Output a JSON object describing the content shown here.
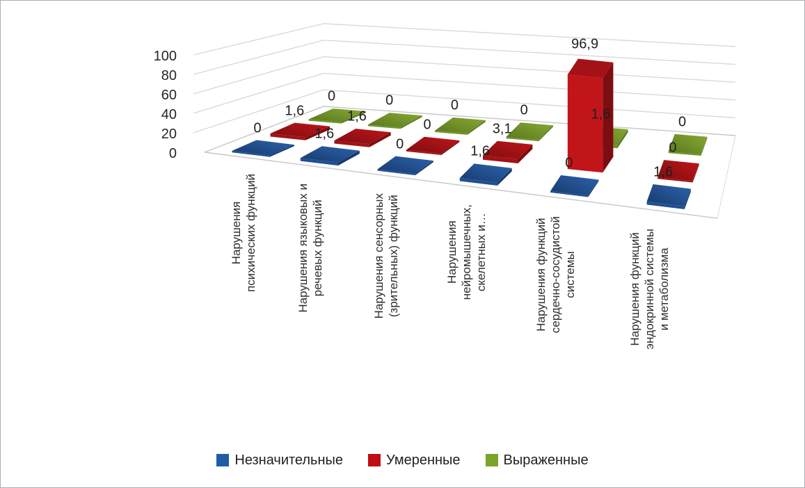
{
  "chart_data": {
    "type": "bar",
    "style": "3d-clustered-column",
    "title": "",
    "categories": [
      "Нарушения психических функций",
      "Нарушения языковых и речевых функций",
      "Нарушения сенсорных (зрительных) функций",
      "Нарушения нейромышечных, скелетных и…",
      "Нарушения функций сердечно-сосудистой системы",
      "Нарушения функций эндокринной системы и метаболизма"
    ],
    "category_label_lines": [
      [
        "Нарушения",
        "психических функций"
      ],
      [
        "Нарушения языковых и",
        "речевых функций"
      ],
      [
        "Нарушения сенсорных",
        "(зрительных) функций"
      ],
      [
        "Нарушения",
        "нейромышечных,",
        "скелетных и…"
      ],
      [
        "Нарушения функций",
        "сердечно-сосудистой",
        "системы"
      ],
      [
        "Нарушения функций",
        "эндокринной системы",
        "и метаболизма"
      ]
    ],
    "series": [
      {
        "name": "Незначительные",
        "color": "#1e5ca8",
        "values": [
          0,
          1.6,
          0,
          1.6,
          0,
          1.6
        ],
        "labels": [
          "0",
          "1,6",
          "0",
          "1,6",
          "0",
          "1,6"
        ]
      },
      {
        "name": "Умеренные",
        "color": "#c00d10",
        "values": [
          1.6,
          1.6,
          0,
          3.1,
          96.9,
          0
        ],
        "labels": [
          "1,6",
          "1,6",
          "0",
          "3,1",
          "96,9",
          "0"
        ]
      },
      {
        "name": "Выраженные",
        "color": "#7ba428",
        "values": [
          0,
          0,
          0,
          0,
          1.6,
          0
        ],
        "labels": [
          "0",
          "0",
          "0",
          "0",
          "1,6",
          "0"
        ]
      }
    ],
    "y_axis": {
      "min": 0,
      "max": 100,
      "step": 20,
      "tick_labels": [
        "0",
        "20",
        "40",
        "60",
        "80",
        "100"
      ]
    },
    "legend": {
      "position": "bottom",
      "entries": [
        "Незначительные",
        "Умеренные",
        "Выраженные"
      ]
    },
    "gridlines": true,
    "series_shades": {
      "blue": {
        "light": "#2e63ae",
        "mid": "#1f4f93",
        "dark": "#163a6c"
      },
      "red": {
        "light": "#c2151a",
        "mid": "#a31216",
        "dark": "#7c0d10"
      },
      "green": {
        "light": "#87aa33",
        "mid": "#6e9226",
        "dark": "#5a771e"
      }
    },
    "gridline_color": "#d9d9d9",
    "floor_edge_color": "#c6c6c6"
  }
}
